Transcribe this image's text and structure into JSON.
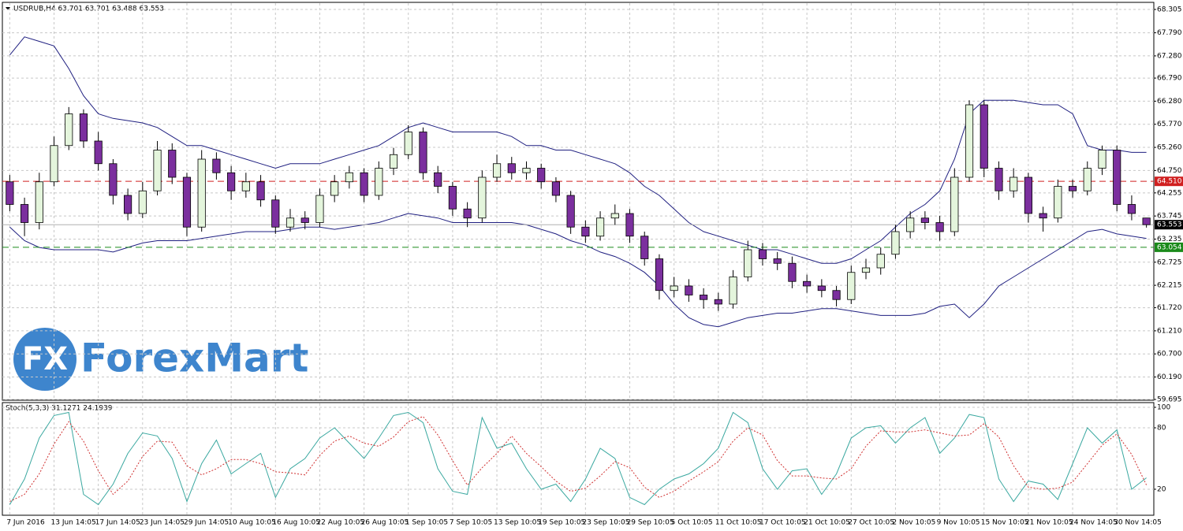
{
  "chart_data": [
    {
      "type": "candlestick",
      "title": "USDRUB,H4  63.701 63.701 63.488 63.553",
      "categories": [
        "7 Jun 2016",
        null,
        null,
        "13 Jun 14:05",
        null,
        null,
        "17 Jun 14:05",
        null,
        null,
        "23 Jun 14:05",
        null,
        null,
        "29 Jun 14:05",
        null,
        null,
        "10 Aug 10:05",
        null,
        null,
        "16 Aug 10:05",
        null,
        null,
        "22 Aug 10:05",
        null,
        null,
        "26 Aug 10:05",
        null,
        null,
        "1 Sep 10:05",
        null,
        null,
        "7 Sep 10:05",
        null,
        null,
        "13 Sep 10:05",
        null,
        null,
        "19 Sep 10:05",
        null,
        null,
        "23 Sep 10:05",
        null,
        null,
        "29 Sep 10:05",
        null,
        null,
        "5 Oct 10:05",
        null,
        null,
        "11 Oct 10:05",
        null,
        null,
        "17 Oct 10:05",
        null,
        null,
        "21 Oct 10:05",
        null,
        null,
        "27 Oct 10:05",
        null,
        null,
        "2 Nov 10:05",
        null,
        null,
        "9 Nov 10:05",
        null,
        null,
        "15 Nov 10:05",
        null,
        null,
        "21 Nov 10:05",
        null,
        null,
        "24 Nov 14:05",
        null,
        null,
        "30 Nov 14:05",
        null,
        null
      ],
      "open": [
        64.5,
        64.0,
        63.6,
        64.5,
        65.3,
        66.0,
        65.4,
        64.9,
        64.2,
        63.8,
        64.3,
        65.2,
        64.6,
        63.5,
        65.0,
        64.7,
        64.3,
        64.5,
        64.1,
        63.5,
        63.7,
        63.6,
        64.2,
        64.5,
        64.7,
        64.2,
        64.8,
        65.1,
        65.6,
        64.7,
        64.4,
        63.9,
        63.7,
        64.6,
        64.9,
        64.7,
        64.8,
        64.5,
        64.2,
        63.5,
        63.3,
        63.7,
        63.8,
        63.3,
        62.8,
        62.1,
        62.2,
        62.0,
        61.9,
        61.8,
        62.4,
        63.0,
        62.8,
        62.7,
        62.3,
        62.2,
        62.1,
        61.9,
        62.5,
        62.6,
        62.9,
        63.4,
        63.7,
        63.6,
        63.4,
        64.6,
        66.2,
        64.8,
        64.3,
        64.6,
        63.8,
        63.7,
        64.4,
        64.3,
        64.8,
        65.2,
        64.0,
        63.701
      ],
      "high": [
        64.65,
        64.15,
        64.7,
        65.5,
        66.15,
        66.1,
        65.6,
        65.0,
        64.35,
        64.5,
        65.4,
        65.35,
        64.7,
        65.2,
        65.15,
        64.85,
        64.7,
        64.65,
        64.2,
        63.9,
        63.85,
        64.35,
        64.65,
        64.85,
        64.8,
        64.95,
        65.25,
        65.75,
        65.7,
        64.85,
        64.5,
        64.05,
        64.75,
        65.1,
        65.05,
        64.95,
        64.9,
        64.6,
        64.3,
        63.65,
        63.85,
        64.0,
        63.9,
        63.4,
        62.9,
        62.4,
        62.35,
        62.15,
        62.05,
        62.55,
        63.2,
        63.15,
        62.95,
        62.85,
        62.45,
        62.35,
        62.2,
        62.65,
        62.8,
        63.05,
        63.55,
        63.85,
        63.85,
        63.75,
        64.8,
        66.3,
        66.3,
        64.95,
        64.8,
        64.7,
        63.95,
        64.55,
        64.55,
        64.95,
        65.3,
        65.3,
        64.2,
        63.701
      ],
      "low": [
        63.85,
        63.3,
        63.45,
        64.4,
        65.2,
        65.25,
        64.75,
        64.0,
        63.65,
        63.7,
        64.2,
        64.45,
        63.3,
        63.4,
        64.55,
        64.1,
        64.15,
        63.95,
        63.35,
        63.4,
        63.45,
        63.5,
        64.05,
        64.35,
        64.05,
        64.1,
        64.65,
        65.0,
        64.55,
        64.25,
        63.75,
        63.5,
        63.6,
        64.5,
        64.55,
        64.55,
        64.35,
        64.05,
        63.35,
        63.15,
        63.2,
        63.55,
        63.15,
        62.65,
        61.9,
        61.95,
        61.85,
        61.7,
        61.65,
        61.7,
        62.3,
        62.65,
        62.55,
        62.15,
        62.05,
        61.95,
        61.75,
        61.8,
        62.35,
        62.45,
        62.8,
        63.25,
        63.45,
        63.2,
        63.3,
        64.5,
        64.6,
        64.1,
        64.15,
        63.6,
        63.4,
        63.6,
        64.15,
        64.2,
        64.65,
        63.85,
        63.65,
        63.488
      ],
      "close": [
        64.0,
        63.6,
        64.5,
        65.3,
        66.0,
        65.4,
        64.9,
        64.2,
        63.8,
        64.3,
        65.2,
        64.6,
        63.5,
        65.0,
        64.7,
        64.3,
        64.5,
        64.1,
        63.5,
        63.7,
        63.6,
        64.2,
        64.5,
        64.7,
        64.2,
        64.8,
        65.1,
        65.6,
        64.7,
        64.4,
        63.9,
        63.7,
        64.6,
        64.9,
        64.7,
        64.8,
        64.5,
        64.2,
        63.5,
        63.3,
        63.7,
        63.8,
        63.3,
        62.8,
        62.1,
        62.2,
        62.0,
        61.9,
        61.8,
        62.4,
        63.0,
        62.8,
        62.7,
        62.3,
        62.2,
        62.1,
        61.9,
        62.5,
        62.6,
        62.9,
        63.4,
        63.7,
        63.6,
        63.4,
        64.6,
        66.2,
        64.8,
        64.3,
        64.6,
        63.8,
        63.7,
        64.4,
        64.3,
        64.8,
        65.2,
        64.0,
        63.8,
        63.553
      ],
      "bull_color": "#e4f5dc",
      "bear_color": "#7b2f9e",
      "bollinger_upper": [
        67.3,
        67.7,
        67.6,
        67.5,
        67.0,
        66.4,
        66.0,
        65.9,
        65.85,
        65.8,
        65.7,
        65.5,
        65.3,
        65.3,
        65.2,
        65.1,
        65.0,
        64.9,
        64.8,
        64.9,
        64.9,
        64.9,
        65.0,
        65.1,
        65.2,
        65.3,
        65.5,
        65.7,
        65.8,
        65.7,
        65.6,
        65.6,
        65.6,
        65.6,
        65.5,
        65.3,
        65.3,
        65.2,
        65.2,
        65.1,
        65.0,
        64.9,
        64.7,
        64.4,
        64.2,
        63.9,
        63.6,
        63.4,
        63.3,
        63.2,
        63.1,
        63.0,
        63.0,
        62.9,
        62.8,
        62.7,
        62.7,
        62.8,
        63.0,
        63.2,
        63.5,
        63.8,
        64.0,
        64.3,
        65.0,
        66.0,
        66.3,
        66.3,
        66.3,
        66.25,
        66.2,
        66.2,
        66.0,
        65.3,
        65.2,
        65.2,
        65.15,
        65.15
      ],
      "bollinger_lower": [
        63.5,
        63.2,
        63.05,
        63.0,
        63.0,
        63.0,
        63.0,
        62.95,
        63.05,
        63.15,
        63.2,
        63.2,
        63.2,
        63.25,
        63.3,
        63.35,
        63.4,
        63.4,
        63.4,
        63.45,
        63.5,
        63.5,
        63.45,
        63.5,
        63.55,
        63.6,
        63.7,
        63.8,
        63.75,
        63.7,
        63.6,
        63.6,
        63.6,
        63.6,
        63.6,
        63.55,
        63.45,
        63.35,
        63.2,
        63.1,
        62.95,
        62.85,
        62.7,
        62.5,
        62.2,
        61.8,
        61.5,
        61.35,
        61.3,
        61.4,
        61.5,
        61.55,
        61.6,
        61.6,
        61.65,
        61.7,
        61.7,
        61.65,
        61.6,
        61.55,
        61.55,
        61.55,
        61.6,
        61.75,
        61.8,
        61.5,
        61.8,
        62.2,
        62.4,
        62.6,
        62.8,
        63.0,
        63.2,
        63.4,
        63.45,
        63.35,
        63.3,
        63.25
      ],
      "band_color": "#1f1f80",
      "ylim": [
        59.695,
        68.305
      ],
      "yticks": [
        68.305,
        {
          "value": 67.79,
          "label": "67.790"
        },
        {
          "value": 67.28,
          "label": "67.280"
        },
        {
          "value": 66.79,
          "label": "66.790"
        },
        {
          "value": 66.28,
          "label": "66.280"
        },
        {
          "value": 65.77,
          "label": "65.770"
        },
        {
          "value": 65.26,
          "label": "65.260"
        },
        {
          "value": 64.75,
          "label": "64.750"
        },
        64.255,
        63.745,
        63.235,
        62.725,
        62.215,
        {
          "value": 61.72,
          "label": "61.720"
        },
        {
          "value": 61.21,
          "label": "61.210"
        },
        {
          "value": 60.7,
          "label": "60.700"
        },
        {
          "value": 60.19,
          "label": "60.190"
        },
        59.695
      ],
      "grid": true,
      "current_price": 63.553,
      "levels": [
        {
          "value": 64.51,
          "label": "64.510",
          "color": "#d02020"
        },
        {
          "value": 63.054,
          "label": "63.054",
          "color": "#1a8a1a"
        }
      ]
    },
    {
      "type": "line",
      "title": "Stoch(5,3,3) 31.1271 24.1939",
      "series": [
        {
          "color": "#3aa8a0",
          "values": [
            5,
            30,
            70,
            92,
            95,
            15,
            5,
            25,
            55,
            75,
            72,
            50,
            8,
            45,
            68,
            35,
            45,
            55,
            12,
            40,
            50,
            70,
            80,
            65,
            50,
            70,
            92,
            95,
            85,
            40,
            18,
            15,
            90,
            60,
            65,
            40,
            20,
            25,
            8,
            30,
            60,
            50,
            12,
            5,
            20,
            30,
            35,
            45,
            60,
            95,
            85,
            40,
            20,
            38,
            40,
            15,
            35,
            70,
            80,
            82,
            65,
            80,
            90,
            55,
            70,
            93,
            90,
            30,
            8,
            28,
            25,
            10,
            45,
            80,
            65,
            78,
            20,
            31.1271
          ]
        },
        {
          "color": "#d03030",
          "values": [
            8,
            15,
            35,
            64,
            86,
            67,
            38,
            15,
            28,
            52,
            67,
            66,
            43,
            34,
            40,
            49,
            49,
            45,
            37,
            36,
            34,
            53,
            67,
            72,
            65,
            62,
            71,
            86,
            91,
            73,
            48,
            24,
            41,
            55,
            72,
            55,
            42,
            28,
            18,
            21,
            33,
            47,
            41,
            22,
            12,
            18,
            28,
            37,
            47,
            67,
            80,
            73,
            48,
            33,
            33,
            31,
            30,
            40,
            62,
            77,
            76,
            76,
            78,
            75,
            72,
            73,
            84,
            71,
            43,
            22,
            20,
            21,
            27,
            45,
            63,
            74,
            54,
            24.1939
          ]
        }
      ],
      "ylim": [
        0,
        100
      ],
      "yticks": [
        100,
        80,
        20
      ],
      "grid": true
    }
  ],
  "watermark": {
    "logo": "FX",
    "name": "ForexMart"
  }
}
